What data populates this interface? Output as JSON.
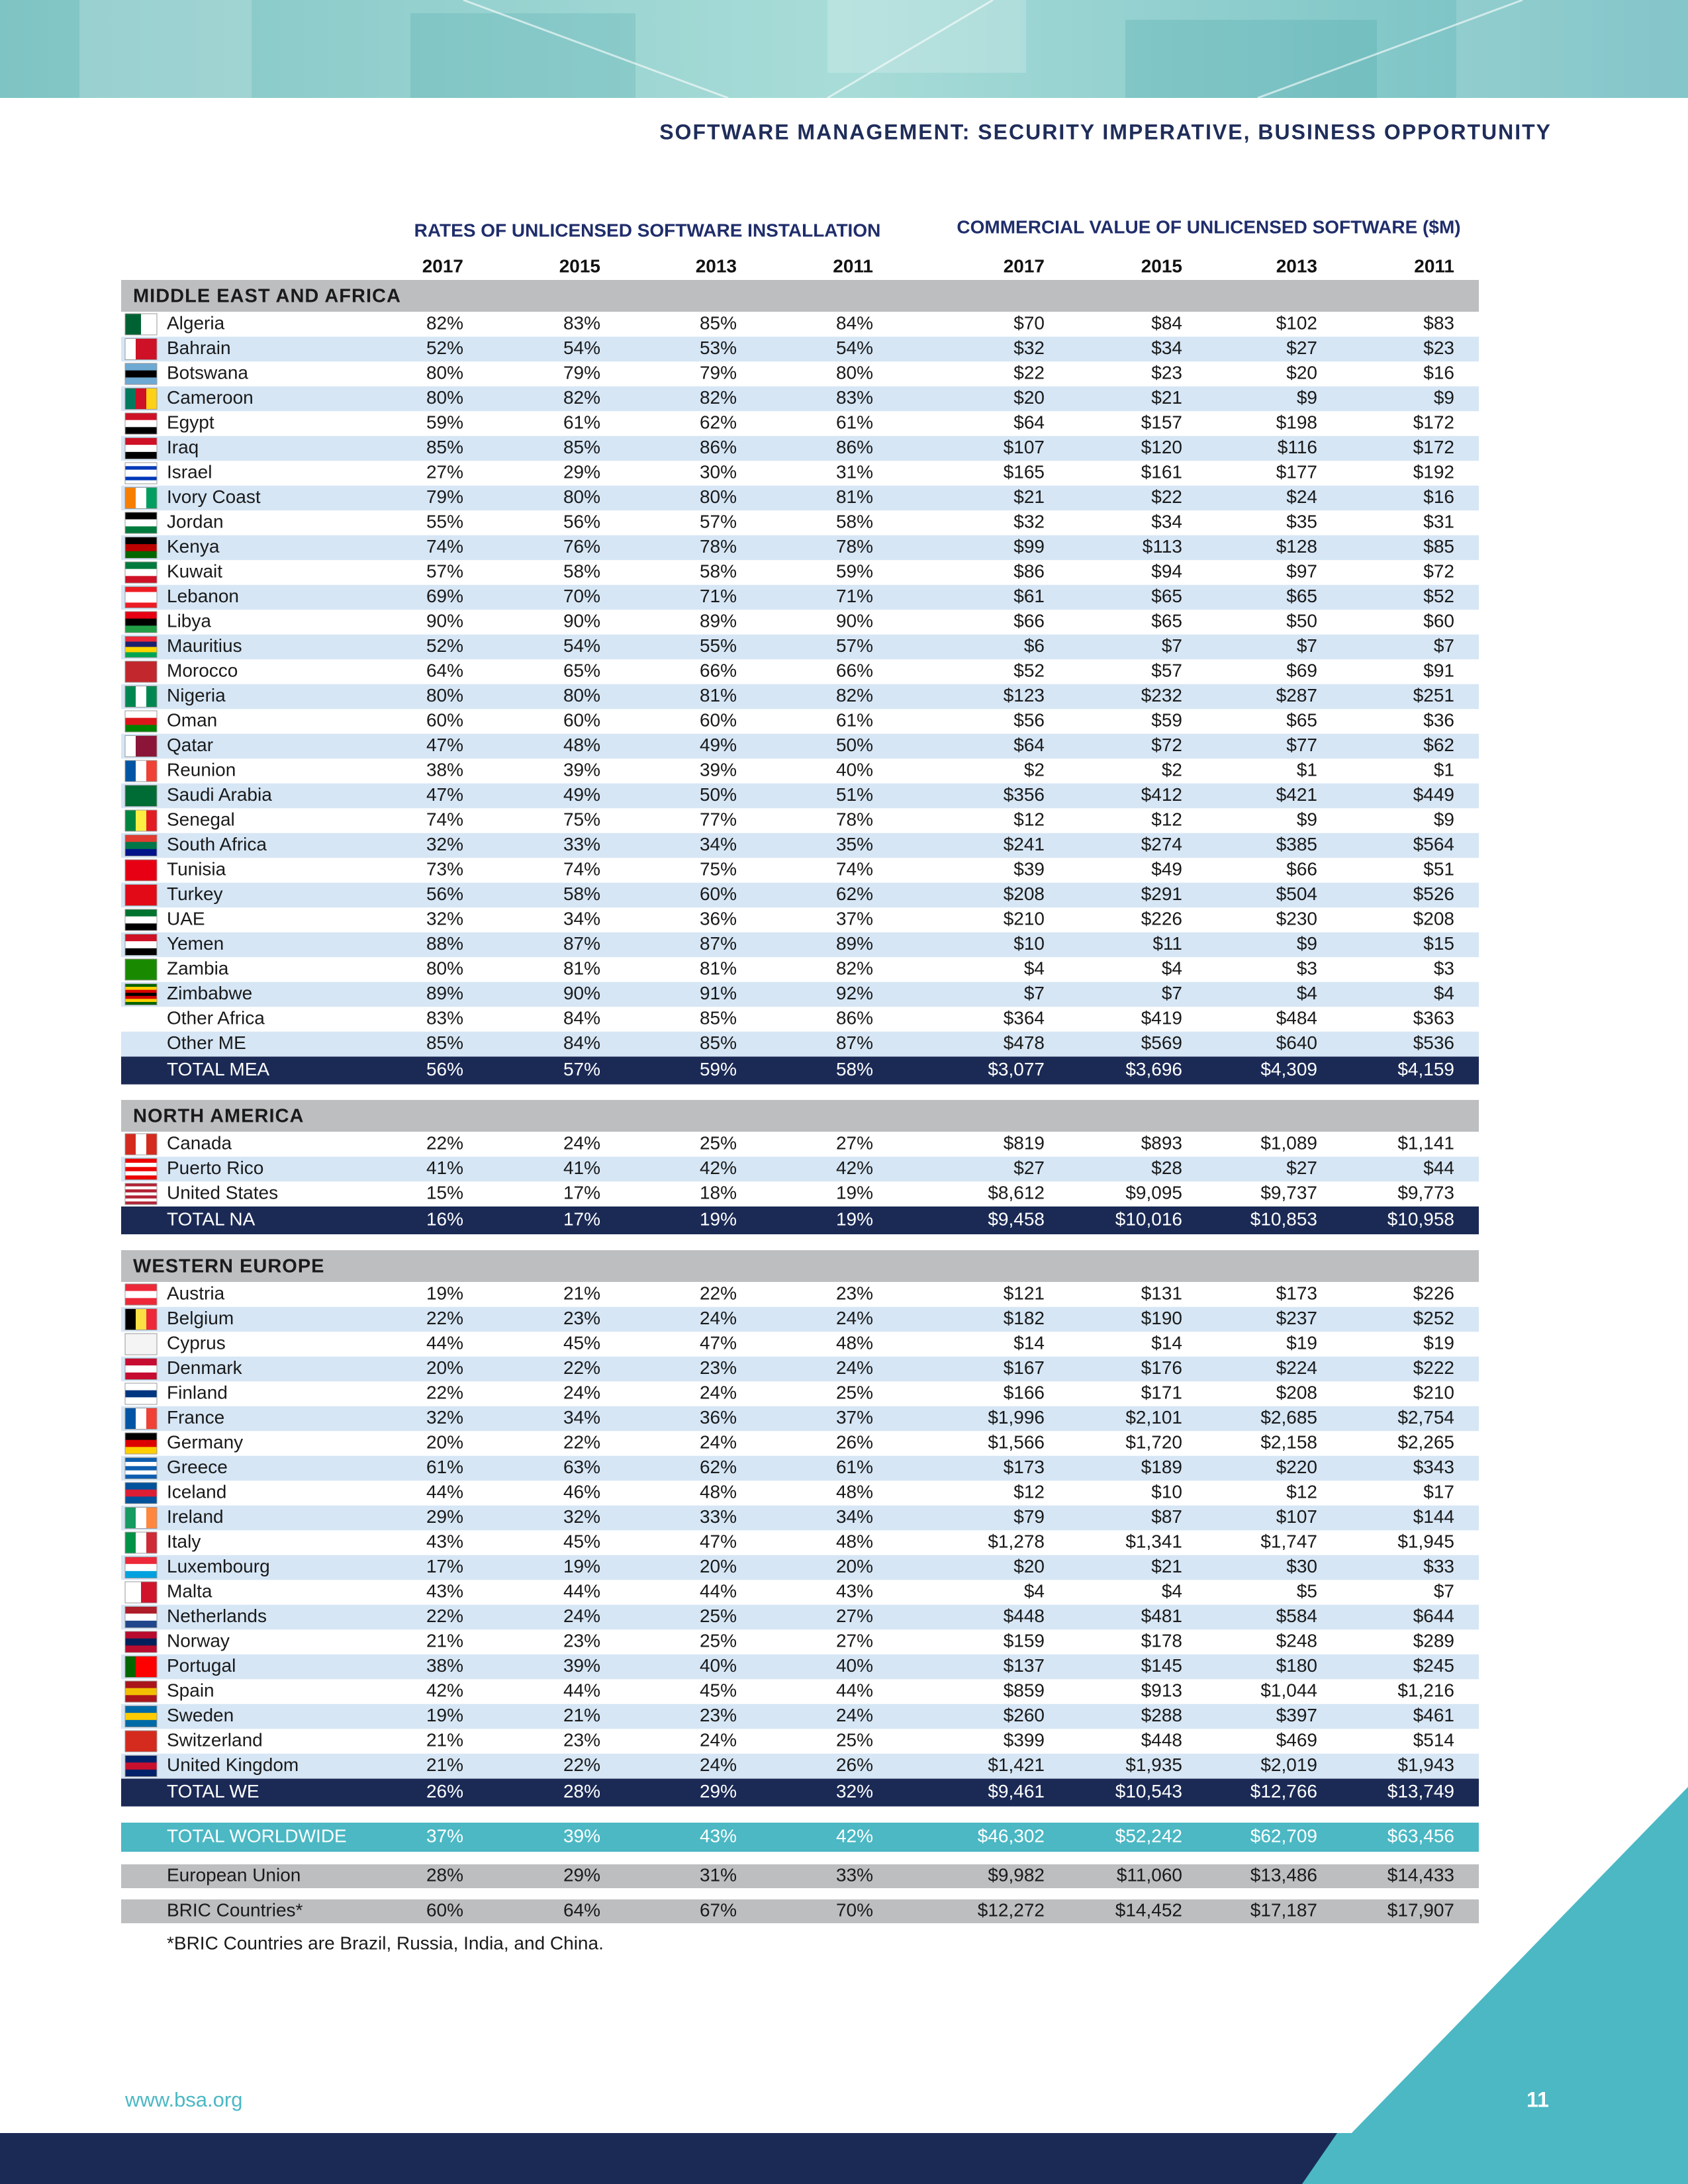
{
  "header": {
    "title": "SOFTWARE MANAGEMENT: SECURITY IMPERATIVE, BUSINESS OPPORTUNITY"
  },
  "table": {
    "group_headers": [
      "RATES OF UNLICENSED SOFTWARE INSTALLATION",
      "COMMERCIAL VALUE OF UNLICENSED SOFTWARE ($M)"
    ],
    "years": [
      "2017",
      "2015",
      "2013",
      "2011",
      "2017",
      "2015",
      "2013",
      "2011"
    ],
    "sections": [
      {
        "title": "MIDDLE EAST AND AFRICA",
        "rows": [
          {
            "name": "Algeria",
            "cells": [
              "82%",
              "83%",
              "85%",
              "84%",
              "$70",
              "$84",
              "$102",
              "$83"
            ]
          },
          {
            "name": "Bahrain",
            "cells": [
              "52%",
              "54%",
              "53%",
              "54%",
              "$32",
              "$34",
              "$27",
              "$23"
            ]
          },
          {
            "name": "Botswana",
            "cells": [
              "80%",
              "79%",
              "79%",
              "80%",
              "$22",
              "$23",
              "$20",
              "$16"
            ]
          },
          {
            "name": "Cameroon",
            "cells": [
              "80%",
              "82%",
              "82%",
              "83%",
              "$20",
              "$21",
              "$9",
              "$9"
            ]
          },
          {
            "name": "Egypt",
            "cells": [
              "59%",
              "61%",
              "62%",
              "61%",
              "$64",
              "$157",
              "$198",
              "$172"
            ]
          },
          {
            "name": "Iraq",
            "cells": [
              "85%",
              "85%",
              "86%",
              "86%",
              "$107",
              "$120",
              "$116",
              "$172"
            ]
          },
          {
            "name": "Israel",
            "cells": [
              "27%",
              "29%",
              "30%",
              "31%",
              "$165",
              "$161",
              "$177",
              "$192"
            ]
          },
          {
            "name": "Ivory Coast",
            "cells": [
              "79%",
              "80%",
              "80%",
              "81%",
              "$21",
              "$22",
              "$24",
              "$16"
            ]
          },
          {
            "name": "Jordan",
            "cells": [
              "55%",
              "56%",
              "57%",
              "58%",
              "$32",
              "$34",
              "$35",
              "$31"
            ]
          },
          {
            "name": "Kenya",
            "cells": [
              "74%",
              "76%",
              "78%",
              "78%",
              "$99",
              "$113",
              "$128",
              "$85"
            ]
          },
          {
            "name": "Kuwait",
            "cells": [
              "57%",
              "58%",
              "58%",
              "59%",
              "$86",
              "$94",
              "$97",
              "$72"
            ]
          },
          {
            "name": "Lebanon",
            "cells": [
              "69%",
              "70%",
              "71%",
              "71%",
              "$61",
              "$65",
              "$65",
              "$52"
            ]
          },
          {
            "name": "Libya",
            "cells": [
              "90%",
              "90%",
              "89%",
              "90%",
              "$66",
              "$65",
              "$50",
              "$60"
            ]
          },
          {
            "name": "Mauritius",
            "cells": [
              "52%",
              "54%",
              "55%",
              "57%",
              "$6",
              "$7",
              "$7",
              "$7"
            ]
          },
          {
            "name": "Morocco",
            "cells": [
              "64%",
              "65%",
              "66%",
              "66%",
              "$52",
              "$57",
              "$69",
              "$91"
            ]
          },
          {
            "name": "Nigeria",
            "cells": [
              "80%",
              "80%",
              "81%",
              "82%",
              "$123",
              "$232",
              "$287",
              "$251"
            ]
          },
          {
            "name": "Oman",
            "cells": [
              "60%",
              "60%",
              "60%",
              "61%",
              "$56",
              "$59",
              "$65",
              "$36"
            ]
          },
          {
            "name": "Qatar",
            "cells": [
              "47%",
              "48%",
              "49%",
              "50%",
              "$64",
              "$72",
              "$77",
              "$62"
            ]
          },
          {
            "name": "Reunion",
            "cells": [
              "38%",
              "39%",
              "39%",
              "40%",
              "$2",
              "$2",
              "$1",
              "$1"
            ]
          },
          {
            "name": "Saudi Arabia",
            "cells": [
              "47%",
              "49%",
              "50%",
              "51%",
              "$356",
              "$412",
              "$421",
              "$449"
            ]
          },
          {
            "name": "Senegal",
            "cells": [
              "74%",
              "75%",
              "77%",
              "78%",
              "$12",
              "$12",
              "$9",
              "$9"
            ]
          },
          {
            "name": "South Africa",
            "cells": [
              "32%",
              "33%",
              "34%",
              "35%",
              "$241",
              "$274",
              "$385",
              "$564"
            ]
          },
          {
            "name": "Tunisia",
            "cells": [
              "73%",
              "74%",
              "75%",
              "74%",
              "$39",
              "$49",
              "$66",
              "$51"
            ]
          },
          {
            "name": "Turkey",
            "cells": [
              "56%",
              "58%",
              "60%",
              "62%",
              "$208",
              "$291",
              "$504",
              "$526"
            ]
          },
          {
            "name": "UAE",
            "cells": [
              "32%",
              "34%",
              "36%",
              "37%",
              "$210",
              "$226",
              "$230",
              "$208"
            ]
          },
          {
            "name": "Yemen",
            "cells": [
              "88%",
              "87%",
              "87%",
              "89%",
              "$10",
              "$11",
              "$9",
              "$15"
            ]
          },
          {
            "name": "Zambia",
            "cells": [
              "80%",
              "81%",
              "81%",
              "82%",
              "$4",
              "$4",
              "$3",
              "$3"
            ]
          },
          {
            "name": "Zimbabwe",
            "cells": [
              "89%",
              "90%",
              "91%",
              "92%",
              "$7",
              "$7",
              "$4",
              "$4"
            ]
          },
          {
            "name": "Other Africa",
            "cells": [
              "83%",
              "84%",
              "85%",
              "86%",
              "$364",
              "$419",
              "$484",
              "$363"
            ]
          },
          {
            "name": "Other ME",
            "cells": [
              "85%",
              "84%",
              "85%",
              "87%",
              "$478",
              "$569",
              "$640",
              "$536"
            ]
          }
        ],
        "total": {
          "name": "TOTAL MEA",
          "cells": [
            "56%",
            "57%",
            "59%",
            "58%",
            "$3,077",
            "$3,696",
            "$4,309",
            "$4,159"
          ]
        }
      },
      {
        "title": "NORTH AMERICA",
        "rows": [
          {
            "name": "Canada",
            "cells": [
              "22%",
              "24%",
              "25%",
              "27%",
              "$819",
              "$893",
              "$1,089",
              "$1,141"
            ]
          },
          {
            "name": "Puerto Rico",
            "cells": [
              "41%",
              "41%",
              "42%",
              "42%",
              "$27",
              "$28",
              "$27",
              "$44"
            ]
          },
          {
            "name": "United States",
            "cells": [
              "15%",
              "17%",
              "18%",
              "19%",
              "$8,612",
              "$9,095",
              "$9,737",
              "$9,773"
            ]
          }
        ],
        "total": {
          "name": "TOTAL NA",
          "cells": [
            "16%",
            "17%",
            "19%",
            "19%",
            "$9,458",
            "$10,016",
            "$10,853",
            "$10,958"
          ]
        }
      },
      {
        "title": "WESTERN EUROPE",
        "rows": [
          {
            "name": "Austria",
            "cells": [
              "19%",
              "21%",
              "22%",
              "23%",
              "$121",
              "$131",
              "$173",
              "$226"
            ]
          },
          {
            "name": "Belgium",
            "cells": [
              "22%",
              "23%",
              "24%",
              "24%",
              "$182",
              "$190",
              "$237",
              "$252"
            ]
          },
          {
            "name": "Cyprus",
            "cells": [
              "44%",
              "45%",
              "47%",
              "48%",
              "$14",
              "$14",
              "$19",
              "$19"
            ]
          },
          {
            "name": "Denmark",
            "cells": [
              "20%",
              "22%",
              "23%",
              "24%",
              "$167",
              "$176",
              "$224",
              "$222"
            ]
          },
          {
            "name": "Finland",
            "cells": [
              "22%",
              "24%",
              "24%",
              "25%",
              "$166",
              "$171",
              "$208",
              "$210"
            ]
          },
          {
            "name": "France",
            "cells": [
              "32%",
              "34%",
              "36%",
              "37%",
              "$1,996",
              "$2,101",
              "$2,685",
              "$2,754"
            ]
          },
          {
            "name": "Germany",
            "cells": [
              "20%",
              "22%",
              "24%",
              "26%",
              "$1,566",
              "$1,720",
              "$2,158",
              "$2,265"
            ]
          },
          {
            "name": "Greece",
            "cells": [
              "61%",
              "63%",
              "62%",
              "61%",
              "$173",
              "$189",
              "$220",
              "$343"
            ]
          },
          {
            "name": "Iceland",
            "cells": [
              "44%",
              "46%",
              "48%",
              "48%",
              "$12",
              "$10",
              "$12",
              "$17"
            ]
          },
          {
            "name": "Ireland",
            "cells": [
              "29%",
              "32%",
              "33%",
              "34%",
              "$79",
              "$87",
              "$107",
              "$144"
            ]
          },
          {
            "name": "Italy",
            "cells": [
              "43%",
              "45%",
              "47%",
              "48%",
              "$1,278",
              "$1,341",
              "$1,747",
              "$1,945"
            ]
          },
          {
            "name": "Luxembourg",
            "cells": [
              "17%",
              "19%",
              "20%",
              "20%",
              "$20",
              "$21",
              "$30",
              "$33"
            ]
          },
          {
            "name": "Malta",
            "cells": [
              "43%",
              "44%",
              "44%",
              "43%",
              "$4",
              "$4",
              "$5",
              "$7"
            ]
          },
          {
            "name": "Netherlands",
            "cells": [
              "22%",
              "24%",
              "25%",
              "27%",
              "$448",
              "$481",
              "$584",
              "$644"
            ]
          },
          {
            "name": "Norway",
            "cells": [
              "21%",
              "23%",
              "25%",
              "27%",
              "$159",
              "$178",
              "$248",
              "$289"
            ]
          },
          {
            "name": "Portugal",
            "cells": [
              "38%",
              "39%",
              "40%",
              "40%",
              "$137",
              "$145",
              "$180",
              "$245"
            ]
          },
          {
            "name": "Spain",
            "cells": [
              "42%",
              "44%",
              "45%",
              "44%",
              "$859",
              "$913",
              "$1,044",
              "$1,216"
            ]
          },
          {
            "name": "Sweden",
            "cells": [
              "19%",
              "21%",
              "23%",
              "24%",
              "$260",
              "$288",
              "$397",
              "$461"
            ]
          },
          {
            "name": "Switzerland",
            "cells": [
              "21%",
              "23%",
              "24%",
              "25%",
              "$399",
              "$448",
              "$469",
              "$514"
            ]
          },
          {
            "name": "United Kingdom",
            "cells": [
              "21%",
              "22%",
              "24%",
              "26%",
              "$1,421",
              "$1,935",
              "$2,019",
              "$1,943"
            ]
          }
        ],
        "total": {
          "name": "TOTAL WE",
          "cells": [
            "26%",
            "28%",
            "29%",
            "32%",
            "$9,461",
            "$10,543",
            "$12,766",
            "$13,749"
          ]
        }
      }
    ],
    "worldwide": {
      "name": "TOTAL WORLDWIDE",
      "cells": [
        "37%",
        "39%",
        "43%",
        "42%",
        "$46,302",
        "$52,242",
        "$62,709",
        "$63,456"
      ]
    },
    "summary": [
      {
        "name": "European Union",
        "cells": [
          "28%",
          "29%",
          "31%",
          "33%",
          "$9,982",
          "$11,060",
          "$13,486",
          "$14,433"
        ]
      },
      {
        "name": "BRIC Countries*",
        "cells": [
          "60%",
          "64%",
          "67%",
          "70%",
          "$12,272",
          "$14,452",
          "$17,187",
          "$17,907"
        ]
      }
    ],
    "footnote": "*BRIC Countries are Brazil, Russia, India, and China."
  },
  "footer": {
    "url": "www.bsa.org",
    "page": "11"
  }
}
